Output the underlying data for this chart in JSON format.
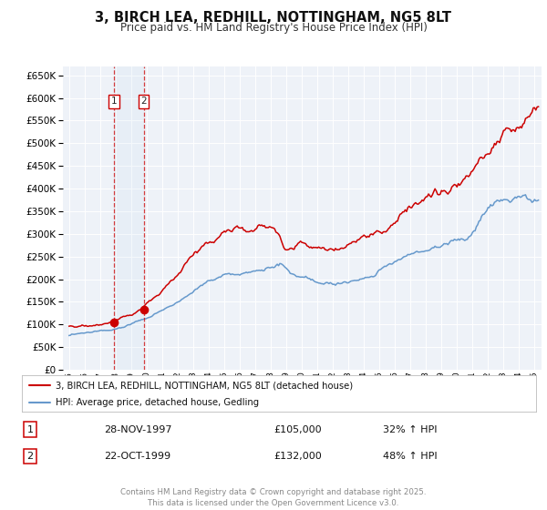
{
  "title": "3, BIRCH LEA, REDHILL, NOTTINGHAM, NG5 8LT",
  "subtitle": "Price paid vs. HM Land Registry's House Price Index (HPI)",
  "bg_color": "#ffffff",
  "plot_bg_color": "#eef2f8",
  "grid_color": "#ffffff",
  "red_line_color": "#cc0000",
  "blue_line_color": "#6699cc",
  "sale1_date_num": 1997.91,
  "sale2_date_num": 1999.81,
  "sale1_price": 105000,
  "sale2_price": 132000,
  "sale1_label": "1",
  "sale2_label": "2",
  "sale1_date_str": "28-NOV-1997",
  "sale2_date_str": "22-OCT-1999",
  "sale1_hpi": "32% ↑ HPI",
  "sale2_hpi": "48% ↑ HPI",
  "legend_label_red": "3, BIRCH LEA, REDHILL, NOTTINGHAM, NG5 8LT (detached house)",
  "legend_label_blue": "HPI: Average price, detached house, Gedling",
  "footer": "Contains HM Land Registry data © Crown copyright and database right 2025.\nThis data is licensed under the Open Government Licence v3.0.",
  "ylim": [
    0,
    670000
  ],
  "xlim_start": 1994.6,
  "xlim_end": 2025.5
}
